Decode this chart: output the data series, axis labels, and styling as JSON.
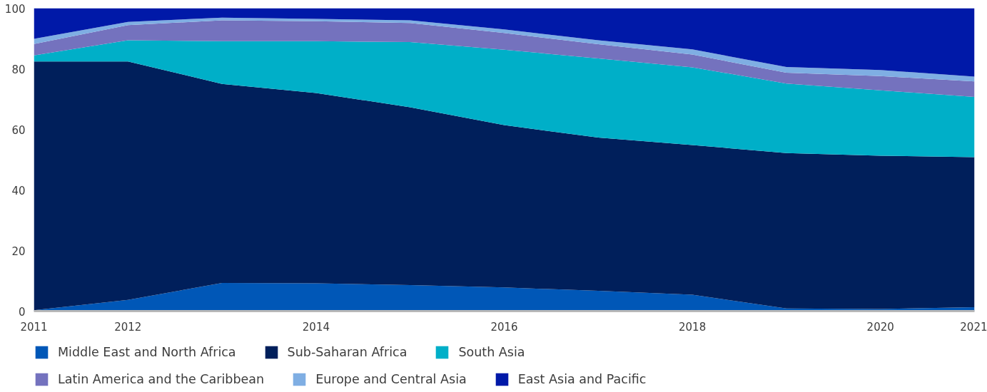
{
  "chart_data": {
    "type": "area",
    "stacked": true,
    "x": [
      2011,
      2012,
      2013,
      2014,
      2015,
      2016,
      2017,
      2018,
      2019,
      2020,
      2021
    ],
    "xlim": [
      2011,
      2021
    ],
    "xticks": [
      2011,
      2012,
      2014,
      2016,
      2018,
      2020,
      2021
    ],
    "ylim": [
      0,
      100
    ],
    "yticks": [
      0,
      20,
      40,
      60,
      80,
      100
    ],
    "grid": false,
    "legend": "bottom",
    "series": [
      {
        "name": "Middle East and North Africa",
        "color": "#0057b7",
        "values": [
          0.3,
          3.7,
          9.3,
          9.2,
          8.6,
          7.8,
          6.7,
          5.4,
          0.9,
          0.7,
          1.3
        ]
      },
      {
        "name": "Sub-Saharan Africa",
        "color": "#001f5b",
        "values": [
          82.1,
          78.7,
          65.7,
          62.8,
          58.7,
          53.6,
          50.6,
          49.4,
          51.3,
          50.6,
          49.5
        ]
      },
      {
        "name": "South Asia",
        "color": "#00afc8",
        "values": [
          2.0,
          7.0,
          14.1,
          17.1,
          21.5,
          24.9,
          26.1,
          25.7,
          22.9,
          21.6,
          19.9
        ]
      },
      {
        "name": "Latin America and the Caribbean",
        "color": "#7472be",
        "values": [
          3.8,
          5.0,
          6.9,
          6.6,
          6.3,
          5.5,
          4.7,
          4.2,
          3.6,
          4.7,
          5.1
        ]
      },
      {
        "name": "Europe and Central Asia",
        "color": "#7faee3",
        "values": [
          1.7,
          1.1,
          0.9,
          0.8,
          0.9,
          1.2,
          1.3,
          1.7,
          1.9,
          2.0,
          1.6
        ]
      },
      {
        "name": "East Asia and Pacific",
        "color": "#0019a8",
        "values": [
          10.1,
          4.5,
          3.1,
          3.5,
          4.0,
          7.0,
          10.6,
          13.6,
          19.4,
          20.4,
          22.6
        ]
      }
    ]
  }
}
